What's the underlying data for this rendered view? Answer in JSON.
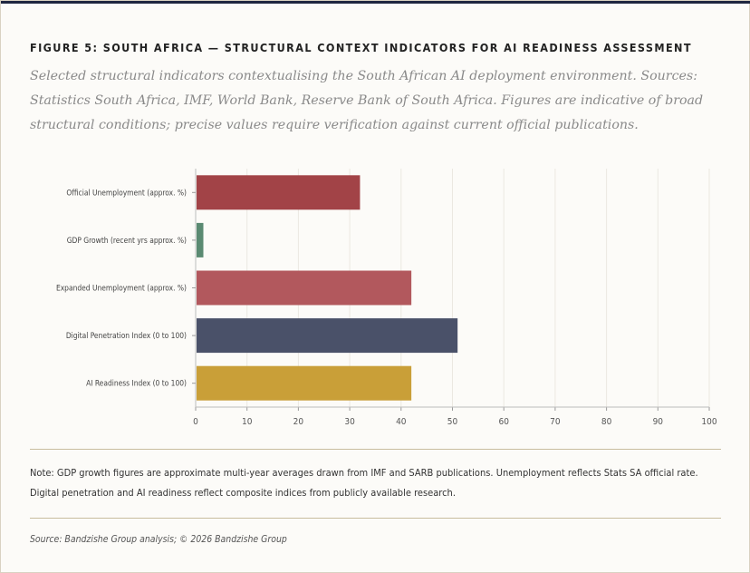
{
  "figure": {
    "title": "FIGURE 5: SOUTH AFRICA — STRUCTURAL CONTEXT INDICATORS FOR AI READINESS ASSESSMENT",
    "subtitle": "Selected structural indicators contextualising the South African AI deployment environment. Sources: Statistics South Africa, IMF, World Bank, Reserve Bank of South Africa. Figures are indicative of broad structural conditions; precise values require verification against current official publications.",
    "note": "Note: GDP growth figures are approximate multi-year averages drawn from IMF and SARB publications. Unemployment reflects Stats SA official rate. Digital penetration and AI readiness reflect composite indices from publicly available research.",
    "source": "Source: Bandzishe Group analysis; © 2026 Bandzishe Group"
  },
  "colors": {
    "frame_accent": "#1e2640",
    "rule": "#c8bd9e",
    "grid": "#ebe8e1"
  },
  "chart_data": {
    "type": "bar",
    "orientation": "horizontal",
    "categories": [
      "Official Unemployment (approx. %)",
      "GDP Growth (recent yrs approx. %)",
      "Expanded Unemployment (approx. %)",
      "Digital Penetration Index (0 to 100)",
      "AI Readiness Index (0 to 100)"
    ],
    "values": [
      32,
      1.5,
      42,
      51,
      42
    ],
    "colors": [
      "#a24347",
      "#5a8a72",
      "#b2585d",
      "#4a5169",
      "#c99f38"
    ],
    "xlim": [
      0,
      100
    ],
    "xticks": [
      "0",
      "10",
      "20",
      "30",
      "40",
      "50",
      "60",
      "70",
      "80",
      "90",
      "100"
    ],
    "grid": "vertical",
    "legend": "none",
    "xlabel": "",
    "ylabel": ""
  }
}
